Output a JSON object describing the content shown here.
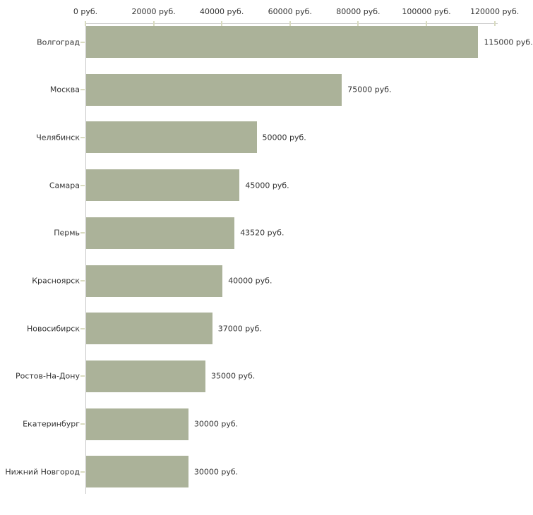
{
  "chart_data": {
    "type": "bar",
    "orientation": "horizontal",
    "title": "",
    "unit": "руб.",
    "categories": [
      "Волгоград",
      "Москва",
      "Челябинск",
      "Самара",
      "Пермь",
      "Красноярск",
      "Новосибирск",
      "Ростов-На-Дону",
      "Екатеринбург",
      "Нижний Новгород"
    ],
    "values": [
      115000,
      75000,
      50000,
      45000,
      43520,
      40000,
      37000,
      35000,
      30000,
      30000
    ],
    "value_labels": [
      "115000 руб.",
      "75000 руб.",
      "50000 руб.",
      "45000 руб.",
      "43520 руб.",
      "40000 руб.",
      "37000 руб.",
      "35000 руб.",
      "30000 руб.",
      "30000 руб."
    ],
    "x_axis": {
      "position": "top",
      "tick_values": [
        0,
        20000,
        40000,
        60000,
        80000,
        100000,
        120000
      ],
      "tick_labels": [
        "0 руб.",
        "20000 руб.",
        "40000 руб.",
        "60000 руб.",
        "80000 руб.",
        "100000 руб.",
        "120000 руб."
      ],
      "range": [
        0,
        126000
      ]
    },
    "legend": "none",
    "grid": "off",
    "colors": {
      "bar": "#abb299",
      "axis_line": "#c9c9c9",
      "tick": "#d9dbc0",
      "text": "#333333",
      "background": "#ffffff"
    }
  }
}
